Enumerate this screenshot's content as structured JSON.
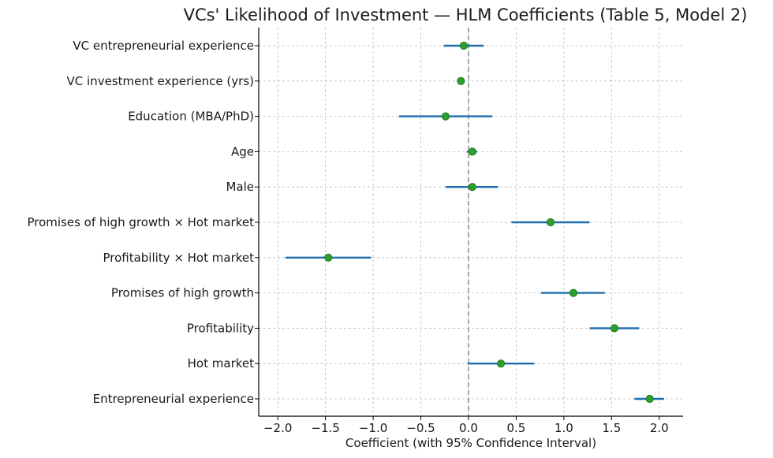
{
  "chart_data": {
    "type": "scatter",
    "subtype": "coefficient-plot",
    "title": "VCs' Likelihood of Investment — HLM Coefficients (Table 5, Model 2)",
    "xlabel": "Coefficient (with 95% Confidence Interval)",
    "ylabel": "",
    "xlim": [
      -2.2,
      2.25
    ],
    "x_ticks": [
      -2.0,
      -1.5,
      -1.0,
      -0.5,
      0.0,
      0.5,
      1.0,
      1.5,
      2.0
    ],
    "x_tick_labels": [
      "−2.0",
      "−1.5",
      "−1.0",
      "−0.5",
      "0.0",
      "0.5",
      "1.0",
      "1.5",
      "2.0"
    ],
    "grid": true,
    "reference_line": 0,
    "categories": [
      "VC entrepreneurial experience",
      "VC investment experience (yrs)",
      "Education (MBA/PhD)",
      "Age",
      "Male",
      "Promises of high growth × Hot market",
      "Profitability × Hot market",
      "Promises of high growth",
      "Profitability",
      "Hot market",
      "Entrepreneurial experience"
    ],
    "estimates": [
      -0.05,
      -0.08,
      -0.24,
      0.04,
      0.04,
      0.86,
      -1.47,
      1.1,
      1.53,
      0.34,
      1.9
    ],
    "ci_low": [
      -0.26,
      -0.12,
      -0.73,
      -0.02,
      -0.24,
      0.45,
      -1.92,
      0.76,
      1.27,
      -0.01,
      1.74
    ],
    "ci_high": [
      0.16,
      -0.04,
      0.25,
      0.09,
      0.31,
      1.27,
      -1.02,
      1.43,
      1.79,
      0.69,
      2.05
    ],
    "colors": {
      "point": "#2ca02c",
      "point_edge": "#1f7a1f",
      "ci": "#1f6fb0",
      "zero_line": "#555555",
      "grid": "#bdbdbd"
    }
  }
}
